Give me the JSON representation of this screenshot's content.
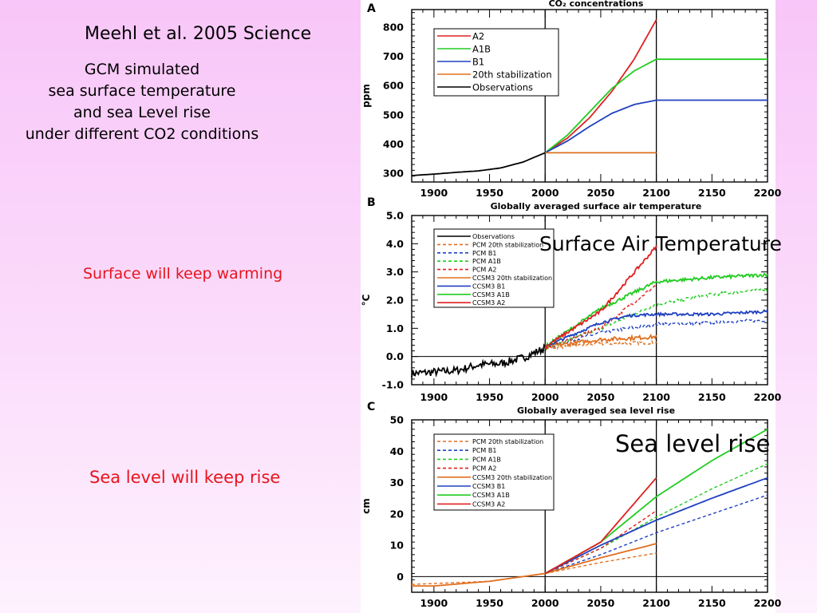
{
  "slide": {
    "citation": "Meehl et al. 2005 Science",
    "gcm_lines": [
      "GCM simulated",
      "sea surface temperature",
      "and sea Level rise",
      "under different CO2 conditions"
    ],
    "warming_note": "Surface will keep warming",
    "sea_note": "Sea level will keep rise",
    "surface_air_label": "Surface Air Temperature",
    "sea_level_label": "Sea level rise",
    "note_color": "#e8141e"
  },
  "chart_data": [
    {
      "panel": "A",
      "type": "line",
      "title": "CO₂ concentrations",
      "ylabel": "ppm",
      "xlim": [
        1880,
        2200
      ],
      "ylim": [
        270,
        860
      ],
      "yticks": [
        300,
        400,
        500,
        600,
        700,
        800
      ],
      "xticks": [
        1900,
        1950,
        2000,
        2050,
        2100,
        2150,
        2200
      ],
      "vlines": [
        2000,
        2100
      ],
      "legend_position": "top-left",
      "series": [
        {
          "name": "A2",
          "color": "#e02020",
          "dashed": false,
          "x": [
            2000,
            2020,
            2040,
            2060,
            2080,
            2100
          ],
          "y": [
            370,
            420,
            490,
            580,
            690,
            825
          ]
        },
        {
          "name": "A1B",
          "color": "#22cc22",
          "dashed": false,
          "x": [
            2000,
            2020,
            2040,
            2060,
            2080,
            2100,
            2200
          ],
          "y": [
            370,
            430,
            510,
            590,
            650,
            690,
            690
          ]
        },
        {
          "name": "B1",
          "color": "#2040c0",
          "dashed": false,
          "x": [
            2000,
            2020,
            2040,
            2060,
            2080,
            2100,
            2200
          ],
          "y": [
            370,
            410,
            460,
            505,
            535,
            550,
            550
          ]
        },
        {
          "name": "20th stabilization",
          "color": "#e07020",
          "dashed": false,
          "x": [
            2000,
            2100
          ],
          "y": [
            370,
            370
          ]
        },
        {
          "name": "Observations",
          "color": "#000000",
          "dashed": false,
          "x": [
            1880,
            1900,
            1920,
            1940,
            1960,
            1980,
            2000
          ],
          "y": [
            292,
            297,
            303,
            308,
            318,
            338,
            370
          ]
        }
      ]
    },
    {
      "panel": "B",
      "type": "line",
      "title": "Globally averaged surface air temperature",
      "ylabel": "°C",
      "xlim": [
        1880,
        2200
      ],
      "ylim": [
        -1.0,
        5.0
      ],
      "yticks": [
        -1.0,
        0.0,
        1.0,
        2.0,
        3.0,
        4.0,
        5.0
      ],
      "yticklabels": [
        "-1.0",
        "0.0",
        "1.0",
        "2.0",
        "3.0",
        "4.0",
        "5.0"
      ],
      "xticks": [
        1900,
        1950,
        2000,
        2050,
        2100,
        2150,
        2200
      ],
      "vlines": [
        2000,
        2100
      ],
      "hline": 0,
      "legend_position": "top-left",
      "series": [
        {
          "name": "Observations",
          "color": "#000000",
          "dashed": false,
          "noise": 0.14,
          "x": [
            1880,
            1900,
            1920,
            1940,
            1960,
            1980,
            2000
          ],
          "y": [
            -0.6,
            -0.55,
            -0.5,
            -0.3,
            -0.25,
            -0.05,
            0.3
          ]
        },
        {
          "name": "PCM 20th stabilization",
          "color": "#e07020",
          "dashed": true,
          "noise": 0.06,
          "x": [
            2000,
            2050,
            2100
          ],
          "y": [
            0.3,
            0.45,
            0.5
          ]
        },
        {
          "name": "PCM B1",
          "color": "#2040c0",
          "dashed": true,
          "noise": 0.06,
          "x": [
            2000,
            2050,
            2100,
            2150,
            2200
          ],
          "y": [
            0.3,
            0.85,
            1.15,
            1.2,
            1.3
          ]
        },
        {
          "name": "PCM A1B",
          "color": "#22cc22",
          "dashed": true,
          "noise": 0.06,
          "x": [
            2000,
            2050,
            2100,
            2150,
            2200
          ],
          "y": [
            0.3,
            1.0,
            1.85,
            2.2,
            2.4
          ]
        },
        {
          "name": "PCM A2",
          "color": "#e02020",
          "dashed": true,
          "noise": 0.06,
          "x": [
            2000,
            2050,
            2100
          ],
          "y": [
            0.3,
            1.0,
            2.55
          ]
        },
        {
          "name": "CCSM3 20th stabilization",
          "color": "#e07020",
          "dashed": false,
          "noise": 0.07,
          "x": [
            2000,
            2050,
            2100
          ],
          "y": [
            0.35,
            0.6,
            0.7
          ]
        },
        {
          "name": "CCSM3 B1",
          "color": "#2040c0",
          "dashed": false,
          "noise": 0.05,
          "x": [
            2000,
            2050,
            2075,
            2100,
            2150,
            2200
          ],
          "y": [
            0.35,
            1.2,
            1.45,
            1.5,
            1.5,
            1.6
          ]
        },
        {
          "name": "CCSM3 A1B",
          "color": "#22cc22",
          "dashed": false,
          "noise": 0.06,
          "x": [
            2000,
            2050,
            2100,
            2150,
            2200
          ],
          "y": [
            0.35,
            1.7,
            2.65,
            2.8,
            2.9
          ]
        },
        {
          "name": "CCSM3 A2",
          "color": "#e02020",
          "dashed": false,
          "noise": 0.06,
          "x": [
            2000,
            2050,
            2100
          ],
          "y": [
            0.35,
            1.6,
            3.9
          ]
        }
      ]
    },
    {
      "panel": "C",
      "type": "line",
      "title": "Globally averaged sea level rise",
      "ylabel": "cm",
      "xlim": [
        1880,
        2200
      ],
      "ylim": [
        -5,
        50
      ],
      "yticks": [
        0,
        10,
        20,
        30,
        40,
        50
      ],
      "xticks": [
        1900,
        1950,
        2000,
        2050,
        2100,
        2150,
        2200
      ],
      "vlines": [
        2000,
        2100
      ],
      "hline": 0,
      "legend_position": "top-left",
      "series": [
        {
          "name": "PCM 20th stabilization",
          "color": "#e07020",
          "dashed": true,
          "x": [
            1880,
            1950,
            2000,
            2050,
            2100
          ],
          "y": [
            -2.5,
            -1.5,
            1,
            4.5,
            7.5
          ]
        },
        {
          "name": "PCM B1",
          "color": "#2040c0",
          "dashed": true,
          "x": [
            2000,
            2050,
            2100,
            2150,
            2200
          ],
          "y": [
            1,
            7,
            14,
            20,
            26
          ]
        },
        {
          "name": "PCM A1B",
          "color": "#22cc22",
          "dashed": true,
          "x": [
            2000,
            2050,
            2100,
            2150,
            2200
          ],
          "y": [
            1,
            9,
            19,
            28,
            36
          ]
        },
        {
          "name": "PCM A2",
          "color": "#e02020",
          "dashed": true,
          "x": [
            2000,
            2050,
            2100
          ],
          "y": [
            1,
            9,
            21
          ]
        },
        {
          "name": "CCSM3 20th stabilization",
          "color": "#e07020",
          "dashed": false,
          "x": [
            1880,
            1900,
            1950,
            2000,
            2050,
            2100
          ],
          "y": [
            -3,
            -3,
            -1.5,
            1,
            6,
            10.5
          ]
        },
        {
          "name": "CCSM3 B1",
          "color": "#2040c0",
          "dashed": false,
          "x": [
            2000,
            2050,
            2100,
            2150,
            2200
          ],
          "y": [
            1,
            10,
            18,
            25,
            31.5
          ]
        },
        {
          "name": "CCSM3 A1B",
          "color": "#22cc22",
          "dashed": false,
          "x": [
            2000,
            2050,
            2100,
            2150,
            2200
          ],
          "y": [
            1,
            11,
            25.5,
            37,
            47
          ]
        },
        {
          "name": "CCSM3 A2",
          "color": "#e02020",
          "dashed": false,
          "x": [
            2000,
            2050,
            2100
          ],
          "y": [
            1,
            11,
            31.5
          ]
        }
      ]
    }
  ]
}
